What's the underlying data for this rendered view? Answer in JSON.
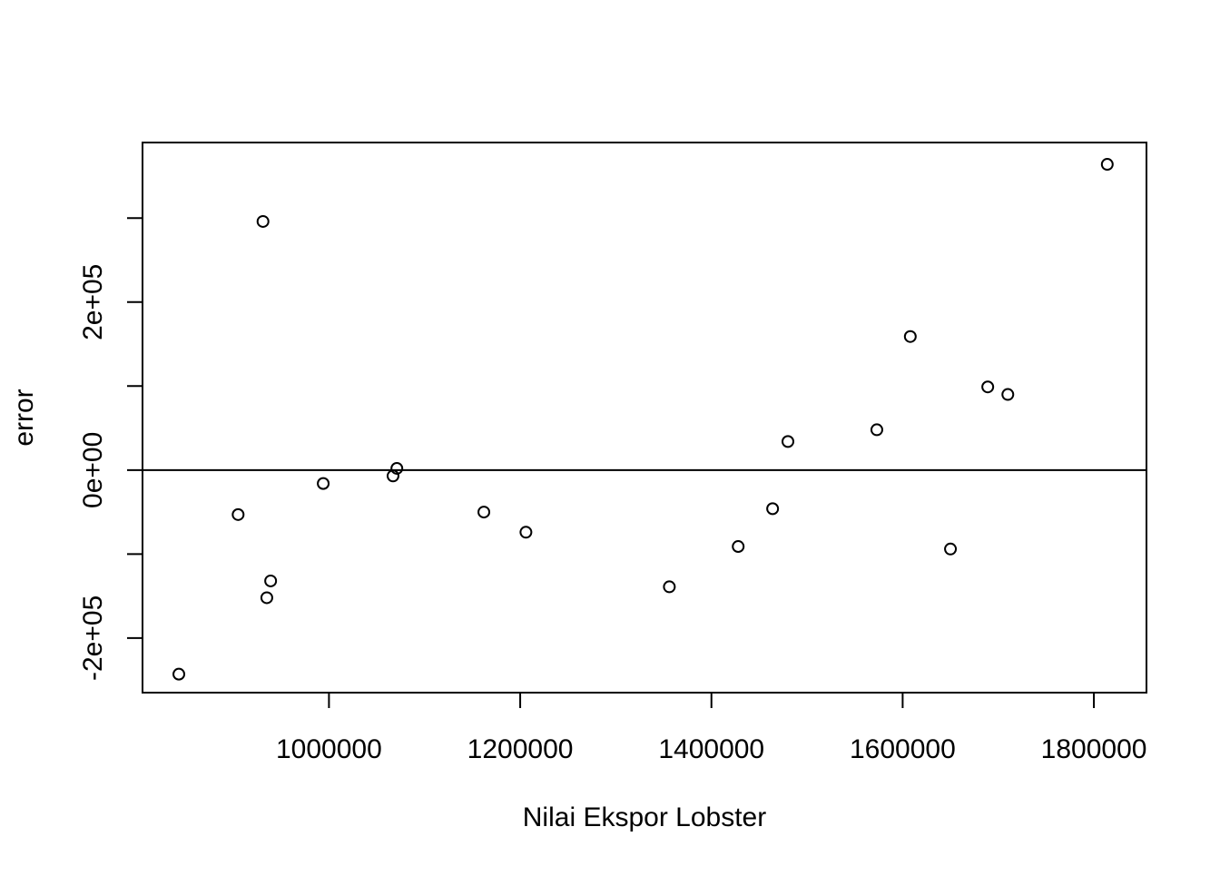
{
  "chart_data": {
    "type": "scatter",
    "title": "",
    "xlabel": "Nilai Ekspor Lobster",
    "ylabel": "error",
    "xlim": [
      805000,
      1855000
    ],
    "ylim": [
      -265000,
      390000
    ],
    "x_ticks": [
      1000000,
      1200000,
      1400000,
      1600000,
      1800000
    ],
    "x_tick_labels": [
      "1000000",
      "1200000",
      "1400000",
      "1600000",
      "1800000"
    ],
    "y_ticks": [
      -200000,
      -100000,
      0,
      100000,
      200000,
      300000
    ],
    "y_tick_labels": [
      "-2e+05",
      "",
      "0e+00",
      "",
      "2e+05",
      ""
    ],
    "hline": 0,
    "marker": "open-circle",
    "grid": false,
    "points": [
      {
        "x": 843000,
        "y": -243000
      },
      {
        "x": 905000,
        "y": -53000
      },
      {
        "x": 931000,
        "y": 296000
      },
      {
        "x": 935000,
        "y": -152000
      },
      {
        "x": 939000,
        "y": -132000
      },
      {
        "x": 994000,
        "y": -16000
      },
      {
        "x": 1067000,
        "y": -7000
      },
      {
        "x": 1071000,
        "y": 2000
      },
      {
        "x": 1162000,
        "y": -50000
      },
      {
        "x": 1206000,
        "y": -74000
      },
      {
        "x": 1356000,
        "y": -139000
      },
      {
        "x": 1428000,
        "y": -91000
      },
      {
        "x": 1464000,
        "y": -46000
      },
      {
        "x": 1480000,
        "y": 34000
      },
      {
        "x": 1573000,
        "y": 48000
      },
      {
        "x": 1608000,
        "y": 159000
      },
      {
        "x": 1650000,
        "y": -94000
      },
      {
        "x": 1689000,
        "y": 99000
      },
      {
        "x": 1710000,
        "y": 90000
      },
      {
        "x": 1814000,
        "y": 364000
      }
    ]
  }
}
